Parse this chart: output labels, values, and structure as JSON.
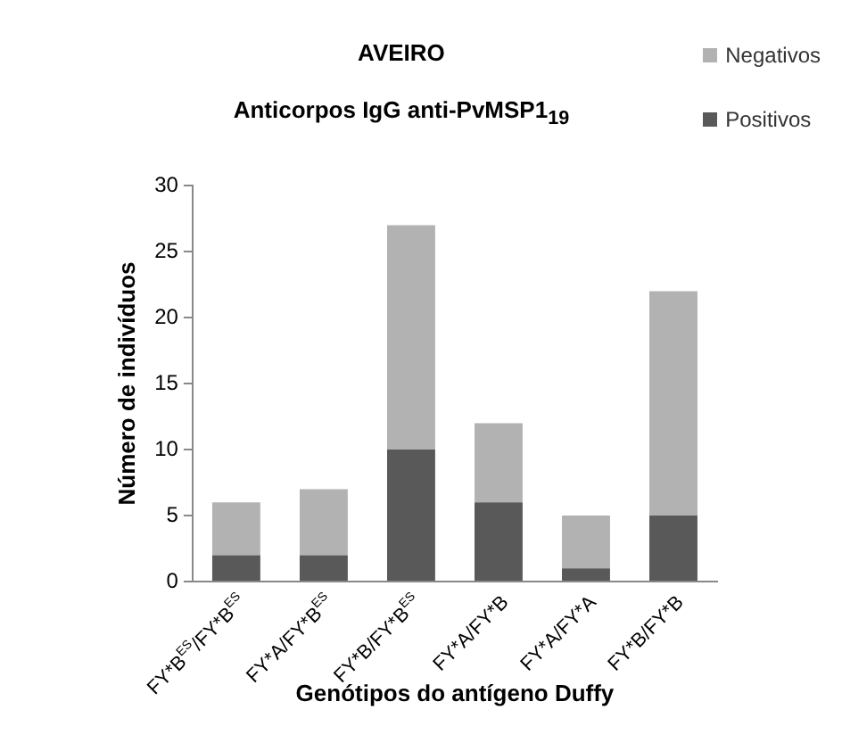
{
  "chart_data": {
    "type": "bar",
    "title": "AVEIRO",
    "subtitle": "Anticorpos IgG anti-PvMSP1$_{19}$",
    "xlabel": "Genótipos do antígeno Duffy",
    "ylabel": "Número de indivíduos",
    "categories": [
      "FY*B$^{ES}$/FY*B$^{ES}$",
      "FY*A/FY*B$^{ES}$",
      "FY*B/FY*B$^{ES}$",
      "FY*A/FY*B",
      "FY*A/FY*A",
      "FY*B/FY*B"
    ],
    "stacked": true,
    "series": [
      {
        "name": "Positivos",
        "color": "#595959",
        "values": [
          2,
          2,
          10,
          6,
          1,
          5
        ]
      },
      {
        "name": "Negativos",
        "color": "#b2b2b2",
        "values": [
          4,
          5,
          17,
          6,
          4,
          17
        ]
      }
    ],
    "ylim": [
      0,
      30
    ],
    "yticks": [
      0,
      5,
      10,
      15,
      20,
      25,
      30
    ],
    "grid": false,
    "legend": "top right"
  }
}
